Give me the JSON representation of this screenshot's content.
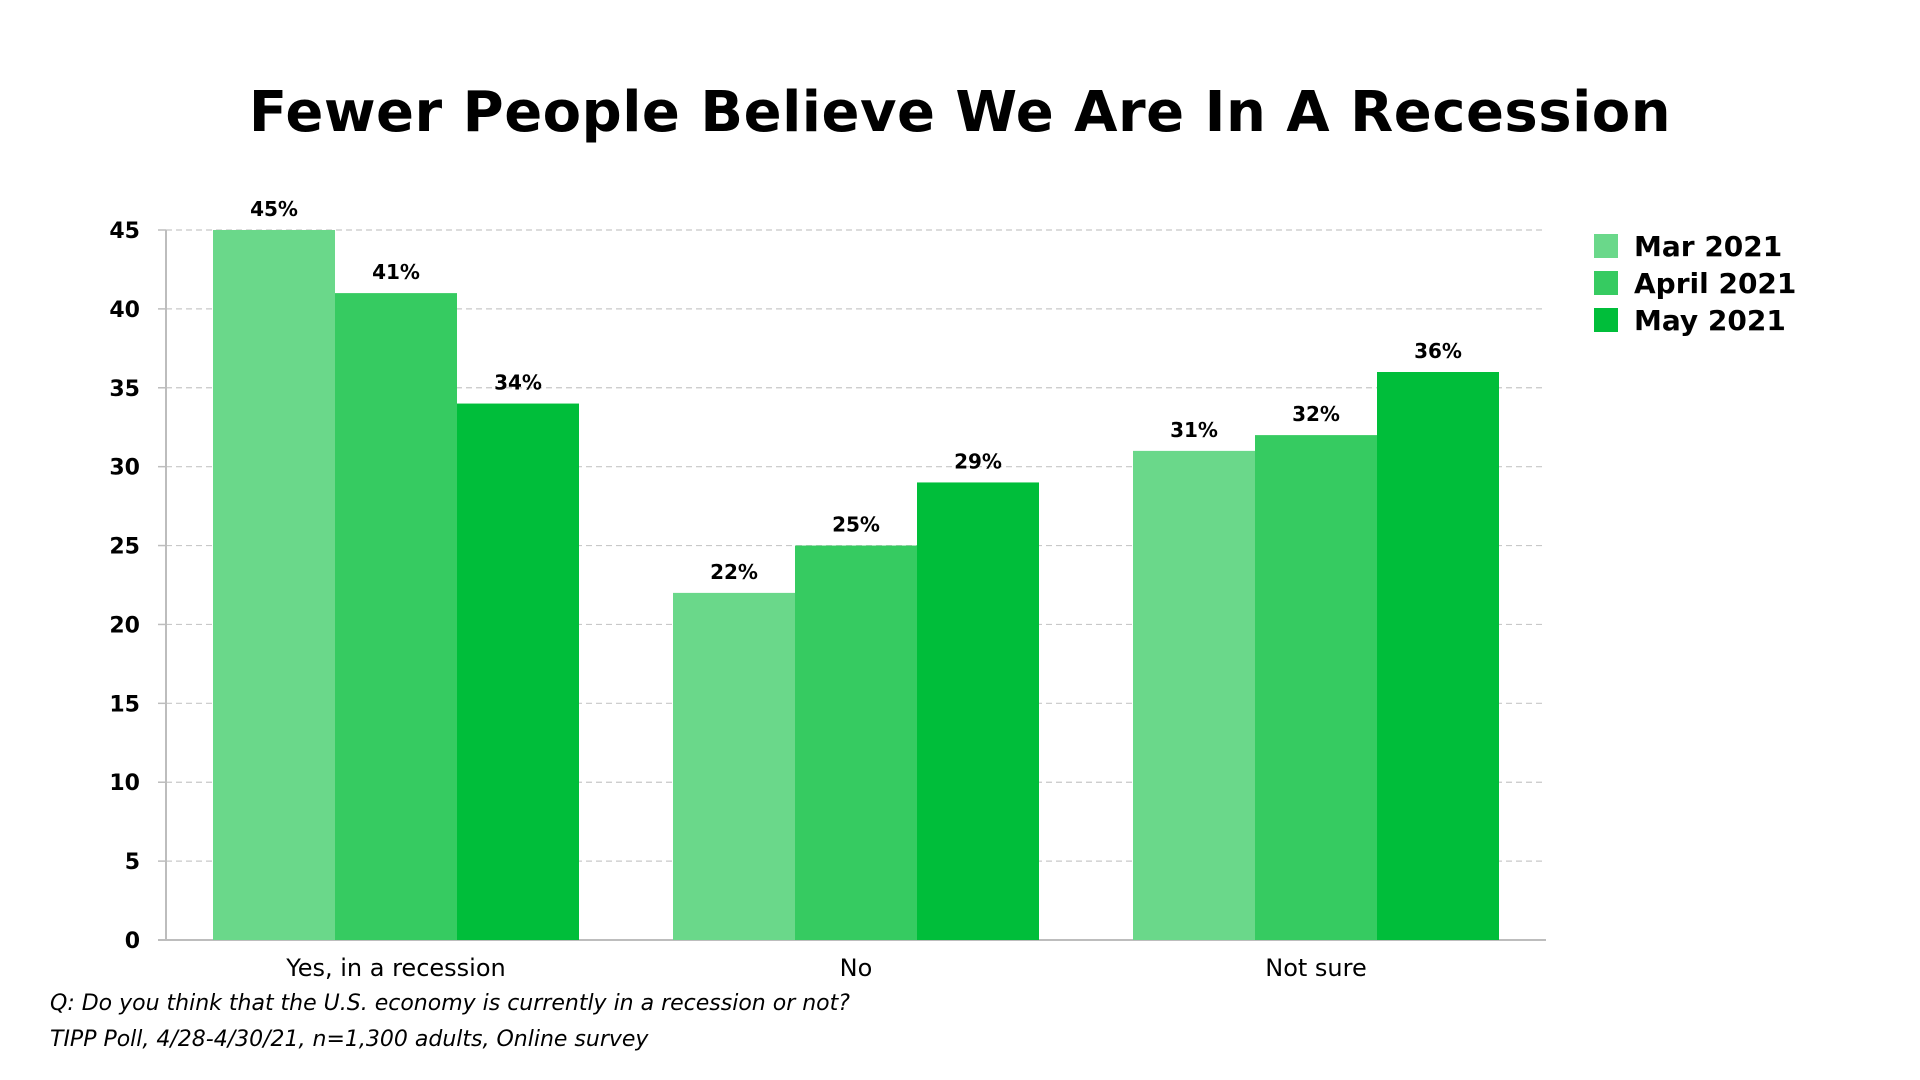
{
  "chart_data": {
    "type": "bar",
    "title": "Fewer People Believe We Are In A Recession",
    "categories": [
      "Yes, in a recession",
      "No",
      "Not sure"
    ],
    "series": [
      {
        "name": "Mar 2021",
        "values": [
          45,
          22,
          31
        ],
        "color": "#6ad88a"
      },
      {
        "name": "April 2021",
        "values": [
          41,
          25,
          32
        ],
        "color": "#36cb61"
      },
      {
        "name": "May 2021",
        "values": [
          34,
          29,
          36
        ],
        "color": "#00be3a"
      }
    ],
    "value_suffix": "%",
    "ylim": [
      0,
      45
    ],
    "yticks": [
      0,
      5,
      10,
      15,
      20,
      25,
      30,
      35,
      40,
      45
    ],
    "grid": true,
    "legend": "top-right",
    "xlabel": "",
    "ylabel": ""
  },
  "footnote": {
    "question": "Q:  Do you think that the U.S. economy is currently in a recession or not?",
    "source": "TIPP Poll, 4/28-4/30/21, n=1,300 adults, Online survey"
  }
}
